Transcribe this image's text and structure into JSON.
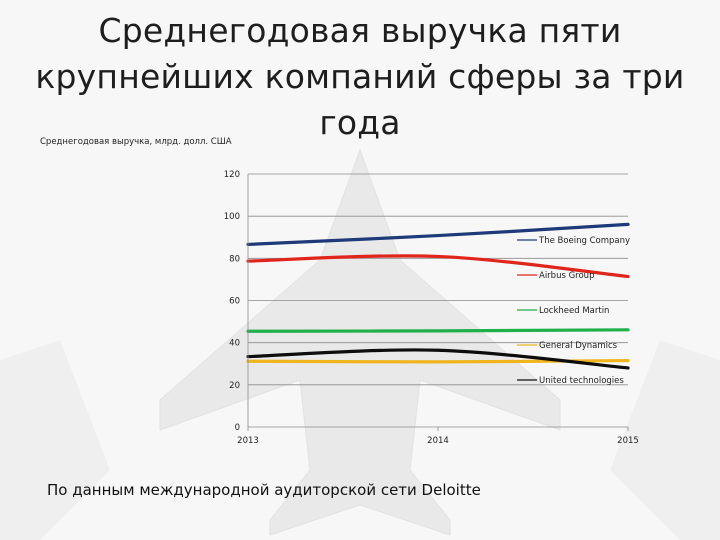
{
  "slide": {
    "title": "Среднегодовая выручка пяти крупнейших компаний сферы за три года",
    "unit_label": "Среднегодовая выручка, млрд. долл. США",
    "source": "По данным международной аудиторской сети Deloitte"
  },
  "chart_data": {
    "type": "line",
    "x": [
      "2013",
      "2014",
      "2015"
    ],
    "y_ticks": [
      0,
      20,
      40,
      60,
      80,
      100,
      120
    ],
    "ylim": [
      0,
      120
    ],
    "grid": true,
    "legend_position": "right",
    "series": [
      {
        "name": "The Boeing Company",
        "values": [
          86.6,
          90.8,
          96.1
        ],
        "color": "#1f3a78"
      },
      {
        "name": "Airbus Group",
        "values": [
          78.7,
          80.9,
          71.4
        ],
        "color": "#e0251b"
      },
      {
        "name": "Lockheed Martin",
        "values": [
          45.4,
          45.6,
          46.1
        ],
        "color": "#1fb04a"
      },
      {
        "name": "General Dynamics",
        "values": [
          31.2,
          30.9,
          31.5
        ],
        "color": "#f0b51e"
      },
      {
        "name": "United technologies",
        "values": [
          33.4,
          36.4,
          28.0
        ],
        "color": "#0d0d0d"
      }
    ]
  }
}
